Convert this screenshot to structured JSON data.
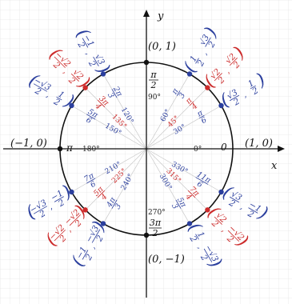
{
  "axes": {
    "x_label": "x",
    "y_label": "y"
  },
  "colors": {
    "blue": "#2b3f9e",
    "red": "#cc2b2b",
    "black": "#111111",
    "grid": "#e3e3e3",
    "ray": "#c9c9c9"
  },
  "axis_points": {
    "right": "(1, 0)",
    "top": "(0, 1)",
    "left": "(−1, 0)",
    "bottom": "(0, −1)"
  },
  "axis_angles": {
    "zero_rad": "0",
    "zero_deg": "0°",
    "ninety_deg": "90°",
    "one_eighty_deg": "180°",
    "two_seventy_deg": "270°"
  },
  "points": [
    {
      "deg": "30°",
      "rad_num": "π",
      "rad_den": "6",
      "x": "√3",
      "xd": "2",
      "y": "1",
      "yd": "2",
      "color": "blue"
    },
    {
      "deg": "45°",
      "rad_num": "π",
      "rad_den": "4",
      "x": "√2",
      "xd": "2",
      "y": "√2",
      "yd": "2",
      "color": "red"
    },
    {
      "deg": "60°",
      "rad_num": "π",
      "rad_den": "3",
      "x": "1",
      "xd": "2",
      "y": "√3",
      "yd": "2",
      "color": "blue"
    },
    {
      "deg": "90°",
      "rad_num": "π",
      "rad_den": "2",
      "color": "black"
    },
    {
      "deg": "120°",
      "rad_num": "2π",
      "rad_den": "3",
      "x": "−1",
      "xd": "2",
      "y": "√3",
      "yd": "2",
      "color": "blue"
    },
    {
      "deg": "135°",
      "rad_num": "3π",
      "rad_den": "4",
      "x": "−√2",
      "xd": "2",
      "y": "√2",
      "yd": "2",
      "color": "red"
    },
    {
      "deg": "150°",
      "rad_num": "5π",
      "rad_den": "6",
      "x": "−√3",
      "xd": "2",
      "y": "1",
      "yd": "2",
      "color": "blue"
    },
    {
      "deg": "180°",
      "rad_num": "π",
      "rad_den": "",
      "color": "black"
    },
    {
      "deg": "210°",
      "rad_num": "7π",
      "rad_den": "6",
      "x": "−√3",
      "xd": "2",
      "y": "−1",
      "yd": "2",
      "color": "blue"
    },
    {
      "deg": "225°",
      "rad_num": "5π",
      "rad_den": "4",
      "x": "−√2",
      "xd": "2",
      "y": "−√2",
      "yd": "2",
      "color": "red"
    },
    {
      "deg": "240°",
      "rad_num": "4π",
      "rad_den": "3",
      "x": "−1",
      "xd": "2",
      "y": "−√3",
      "yd": "2",
      "color": "blue"
    },
    {
      "deg": "270°",
      "rad_num": "3π",
      "rad_den": "2",
      "color": "black"
    },
    {
      "deg": "300°",
      "rad_num": "5π",
      "rad_den": "3",
      "x": "1",
      "xd": "2",
      "y": "−√3",
      "yd": "2",
      "color": "blue"
    },
    {
      "deg": "315°",
      "rad_num": "7π",
      "rad_den": "4",
      "x": "√2",
      "xd": "2",
      "y": "−√2",
      "yd": "2",
      "color": "red"
    },
    {
      "deg": "330°",
      "rad_num": "11π",
      "rad_den": "6",
      "x": "√3",
      "xd": "2",
      "y": "−1",
      "yd": "2",
      "color": "blue"
    }
  ]
}
